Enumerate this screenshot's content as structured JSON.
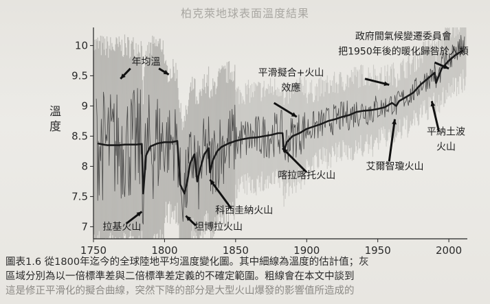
{
  "figure_title": "柏克萊地球表面溫度結果",
  "chart_data": {
    "type": "line",
    "title": "柏克萊地球表面溫度結果",
    "xlabel": "",
    "ylabel": "溫度",
    "xlim": [
      1750,
      2013
    ],
    "ylim": [
      6.8,
      10.3
    ],
    "xticks": [
      "1750",
      "1800",
      "1850",
      "1900",
      "1950",
      "2000"
    ],
    "yticks": [
      "7",
      "7.5",
      "8",
      "8.5",
      "9",
      "9.5",
      "10"
    ],
    "grid": false,
    "series": [
      {
        "kind": "smooth_fit",
        "x": [
          1753,
          1757,
          1760,
          1764,
          1768,
          1772,
          1776,
          1780,
          1784,
          1785,
          1787,
          1790,
          1795,
          1800,
          1805,
          1809,
          1811,
          1814,
          1816,
          1818,
          1821,
          1823,
          1825,
          1828,
          1831,
          1832,
          1834,
          1837,
          1840,
          1845,
          1850,
          1855,
          1860,
          1865,
          1870,
          1875,
          1880,
          1883,
          1884,
          1886,
          1890,
          1895,
          1900,
          1905,
          1910,
          1915,
          1920,
          1925,
          1930,
          1935,
          1940,
          1945,
          1950,
          1955,
          1960,
          1963,
          1965,
          1970,
          1975,
          1980,
          1985,
          1990,
          1991,
          1993,
          1995,
          2000,
          2005,
          2010
        ],
        "y": [
          8.38,
          8.36,
          8.35,
          8.35,
          8.35,
          8.36,
          8.36,
          8.36,
          8.37,
          7.55,
          8.18,
          8.33,
          8.38,
          8.4,
          8.4,
          8.42,
          7.7,
          7.55,
          7.75,
          8.05,
          8.2,
          7.75,
          7.95,
          8.2,
          8.3,
          7.9,
          8.1,
          8.25,
          8.32,
          8.38,
          8.42,
          8.45,
          8.47,
          8.48,
          8.5,
          8.52,
          8.55,
          8.55,
          8.25,
          8.4,
          8.5,
          8.55,
          8.62,
          8.66,
          8.7,
          8.75,
          8.78,
          8.82,
          8.85,
          8.9,
          8.92,
          8.93,
          8.95,
          8.98,
          9.05,
          9.0,
          9.08,
          9.15,
          9.22,
          9.35,
          9.45,
          9.55,
          9.38,
          9.5,
          9.62,
          9.75,
          9.85,
          9.92
        ]
      }
    ],
    "annotations": [
      {
        "text": "年均溫",
        "x": 1787,
        "y": 9.68
      },
      {
        "text": "政府間氣候變遷委員會",
        "x": 1968,
        "y": 10.1
      },
      {
        "text": "把1950年後的暖化歸咎於人類",
        "x": 1968,
        "y": 9.85
      },
      {
        "text": "平滑擬合+火山",
        "x": 1889,
        "y": 9.5
      },
      {
        "text": "效應",
        "x": 1889,
        "y": 9.25
      },
      {
        "text": "平納土波",
        "x": 1998,
        "y": 8.52
      },
      {
        "text": "火山",
        "x": 1998,
        "y": 8.27
      },
      {
        "text": "艾爾智瓊火山",
        "x": 1962,
        "y": 7.95
      },
      {
        "text": "喀拉喀托火山",
        "x": 1900,
        "y": 7.8
      },
      {
        "text": "科西圭納火山",
        "x": 1856,
        "y": 7.22
      },
      {
        "text": "坦博拉火山",
        "x": 1838,
        "y": 6.95
      },
      {
        "text": "拉基火山",
        "x": 1770,
        "y": 6.95
      }
    ]
  },
  "caption": {
    "line1": "圖表1.6  從1800年迄今的全球陸地平均溫度變化圖。其中細線為溫度的估計值；灰",
    "line2": "區域分別為以一倍標準差與二倍標準差定義的不確定範圍。粗線會在本文中談到",
    "line3": "這是修正平滑化的擬合曲線，突然下降的部分是大型火山爆發的影響值所造成的"
  }
}
